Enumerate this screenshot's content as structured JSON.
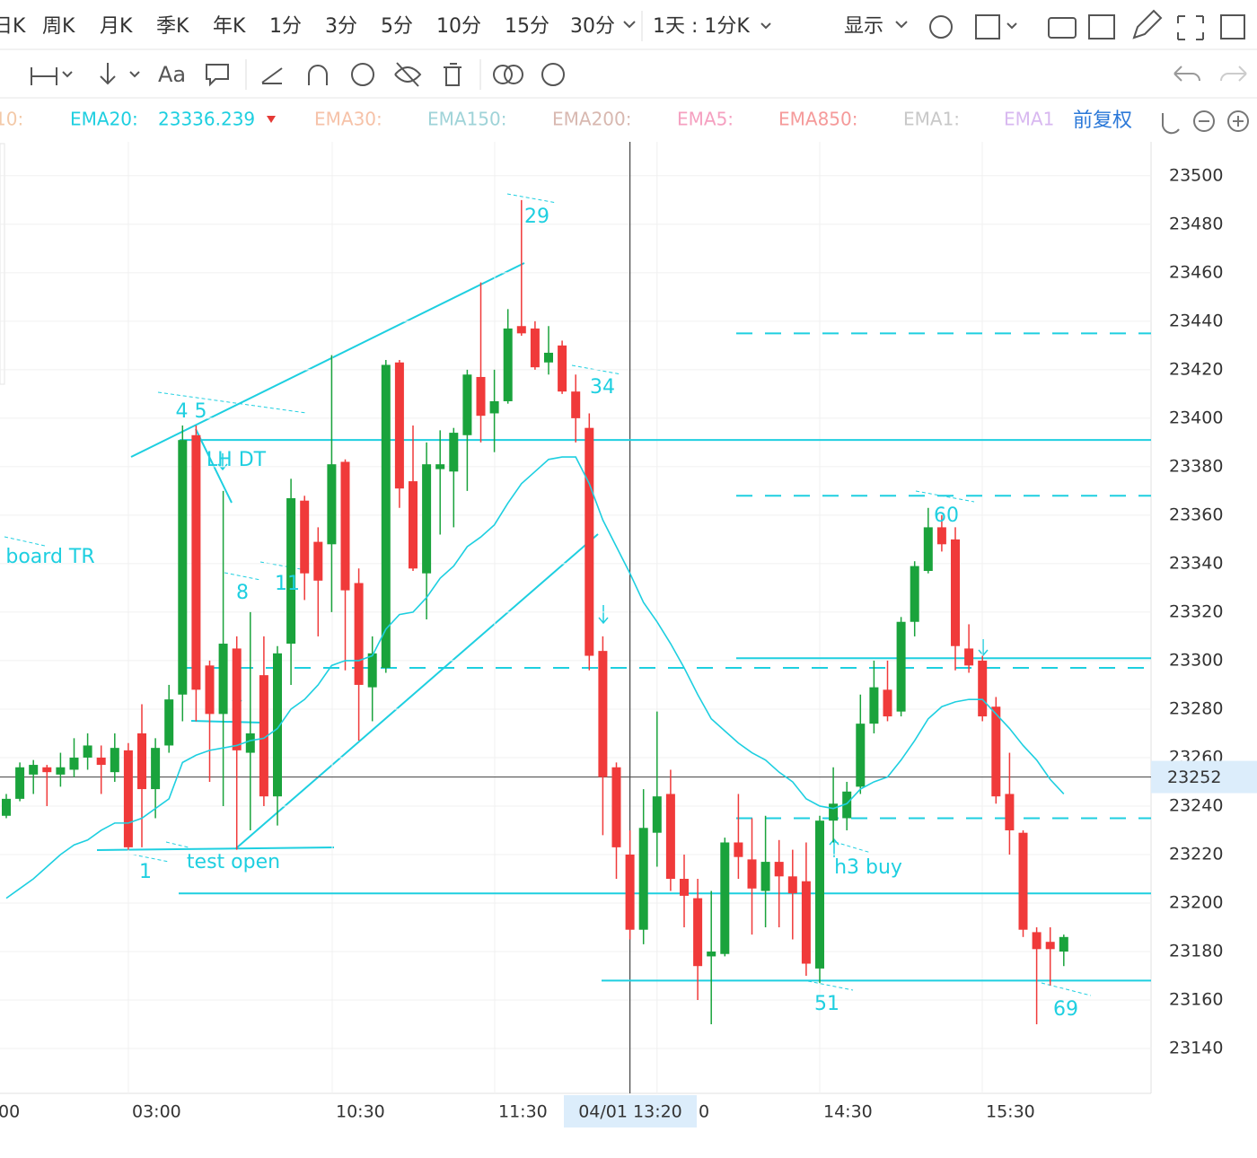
{
  "toolbar": {
    "periods": [
      "日K",
      "周K",
      "月K",
      "季K",
      "年K",
      "1分",
      "3分",
      "5分",
      "10分",
      "15分",
      "30分"
    ],
    "active_period": "5分",
    "combo": "1天 : 1分K",
    "display": "显示",
    "text_tool": "Aa"
  },
  "legend": {
    "items": [
      {
        "name": "10:",
        "color": "#f3c9a8"
      },
      {
        "name": "EMA20:",
        "color": "#1ecfe0",
        "value": "23336.239"
      },
      {
        "name": "EMA30:",
        "color": "#f6c2a8"
      },
      {
        "name": "EMA150:",
        "color": "#9fd3d8"
      },
      {
        "name": "EMA200:",
        "color": "#d8b8b0"
      },
      {
        "name": "EMA5:",
        "color": "#f5a0c0"
      },
      {
        "name": "EMA850:",
        "color": "#f59a9a"
      },
      {
        "name": "EMA1:",
        "color": "#c8c8c8"
      },
      {
        "name": "EMA1",
        "color": "#d8b8f0"
      }
    ],
    "adjust": "前复权"
  },
  "chart_data": {
    "type": "candlestick",
    "categories": [
      "00",
      null,
      null,
      null,
      null,
      null,
      null,
      null,
      null,
      "03:00",
      null,
      null,
      null,
      null,
      null,
      null,
      null,
      null,
      null,
      null,
      null,
      null,
      null,
      null,
      "10:30",
      null,
      null,
      null,
      null,
      null,
      null,
      null,
      null,
      null,
      null,
      null,
      "11:30",
      null,
      null,
      null,
      null,
      null,
      null,
      null,
      null,
      null,
      "04/01 13:20",
      null,
      "0",
      null,
      null,
      null,
      null,
      null,
      null,
      null,
      null,
      null,
      null,
      null,
      "14:30",
      null,
      null,
      null,
      null,
      null,
      null,
      null,
      null,
      null,
      null,
      null,
      "15:30",
      null,
      null,
      null,
      null,
      null,
      null
    ],
    "open": [
      23236,
      23243,
      23253,
      23256,
      23253,
      23255,
      23260,
      23260,
      23254,
      23263,
      23270,
      23247,
      23265,
      23286,
      23393,
      23298,
      23278,
      23305,
      23262,
      23294,
      23244,
      23307,
      23366,
      23349,
      23348,
      23382,
      23332,
      23289,
      23297,
      23423,
      23374,
      23336,
      23379,
      23378,
      23393,
      23417,
      23402,
      23407,
      23438,
      23437,
      23423,
      23430,
      23411,
      23396,
      23304,
      23256,
      23220,
      23189,
      23229,
      23245,
      23210,
      23202,
      23178,
      23179,
      23225,
      23218,
      23205,
      23217,
      23211,
      23209,
      23173,
      23234,
      23235,
      23248,
      23274,
      23288,
      23279,
      23316,
      23337,
      23355,
      23350,
      23305,
      23300,
      23281,
      23245,
      23229,
      23188,
      23184,
      23180
    ],
    "high": [
      23245,
      23258,
      23259,
      23257,
      23262,
      23268,
      23270,
      23265,
      23270,
      23266,
      23282,
      23268,
      23290,
      23397,
      23397,
      23300,
      23370,
      23310,
      23320,
      23310,
      23306,
      23375,
      23368,
      23355,
      23426,
      23383,
      23338,
      23310,
      23424,
      23424,
      23397,
      23390,
      23395,
      23396,
      23420,
      23456,
      23420,
      23445,
      23490,
      23440,
      23438,
      23432,
      23418,
      23402,
      23310,
      23258,
      23230,
      23247,
      23279,
      23255,
      23220,
      23210,
      23205,
      23227,
      23245,
      23235,
      23236,
      23226,
      23222,
      23225,
      23236,
      23256,
      23250,
      23286,
      23300,
      23300,
      23318,
      23341,
      23363,
      23360,
      23355,
      23315,
      23302,
      23285,
      23262,
      23230,
      23190,
      23190,
      23187
    ],
    "low": [
      23235,
      23242,
      23245,
      23240,
      23248,
      23252,
      23255,
      23245,
      23250,
      23222,
      23223,
      23235,
      23262,
      23275,
      23275,
      23250,
      23240,
      23222,
      23230,
      23240,
      23232,
      23290,
      23325,
      23310,
      23320,
      23296,
      23267,
      23275,
      23295,
      23363,
      23337,
      23317,
      23352,
      23355,
      23370,
      23390,
      23386,
      23406,
      23434,
      23420,
      23418,
      23410,
      23390,
      23296,
      23228,
      23210,
      23185,
      23183,
      23215,
      23205,
      23190,
      23160,
      23150,
      23178,
      23210,
      23187,
      23190,
      23190,
      23185,
      23170,
      23167,
      23225,
      23230,
      23245,
      23270,
      23275,
      23277,
      23310,
      23336,
      23345,
      23296,
      23295,
      23275,
      23241,
      23220,
      23186,
      23150,
      23166,
      23174
    ],
    "close": [
      23243,
      23256,
      23257,
      23254,
      23256,
      23260,
      23265,
      23257,
      23264,
      23223,
      23247,
      23264,
      23284,
      23391,
      23288,
      23278,
      23307,
      23263,
      23270,
      23244,
      23303,
      23367,
      23336,
      23333,
      23381,
      23329,
      23290,
      23303,
      23422,
      23371,
      23338,
      23381,
      23381,
      23394,
      23418,
      23401,
      23407,
      23437,
      23435,
      23421,
      23427,
      23411,
      23400,
      23302,
      23252,
      23223,
      23189,
      23231,
      23244,
      23210,
      23203,
      23174,
      23180,
      23225,
      23219,
      23206,
      23217,
      23211,
      23204,
      23175,
      23234,
      23241,
      23246,
      23274,
      23289,
      23277,
      23316,
      23339,
      23355,
      23348,
      23306,
      23298,
      23277,
      23244,
      23230,
      23189,
      23181,
      23181,
      23186
    ],
    "up_color": "#1aa33c",
    "down_color": "#f03a3a",
    "series": [
      {
        "name": "EMA20",
        "color": "#1ecfe0",
        "values": [
          23202,
          23206,
          23210,
          23215,
          23220,
          23224,
          23226,
          23230,
          23233,
          23233,
          23235,
          23239,
          23243,
          23258,
          23261,
          23263,
          23264,
          23265,
          23267,
          23268,
          23272,
          23280,
          23284,
          23290,
          23298,
          23300,
          23300,
          23302,
          23313,
          23319,
          23320,
          23326,
          23334,
          23339,
          23347,
          23351,
          23356,
          23365,
          23373,
          23378,
          23383,
          23384,
          23384,
          23373,
          23358,
          23347,
          23336,
          23324,
          23316,
          23307,
          23297,
          23286,
          23276,
          23271,
          23266,
          23262,
          23259,
          23254,
          23250,
          23243,
          23240,
          23239,
          23241,
          23247,
          23250,
          23252,
          23259,
          23267,
          23276,
          23281,
          23283,
          23284,
          23284,
          23278,
          23272,
          23265,
          23259,
          23251,
          23245
        ]
      }
    ],
    "hlines": [
      {
        "value": 23391,
        "style": "solid"
      },
      {
        "value": 23204,
        "style": "solid"
      },
      {
        "value": 23301,
        "style": "solid"
      },
      {
        "value": 23168,
        "style": "solid"
      },
      {
        "value": 23435,
        "style": "dashed"
      },
      {
        "value": 23368,
        "style": "dashed"
      },
      {
        "value": 23297,
        "style": "dashed"
      },
      {
        "value": 23235,
        "style": "dashed"
      }
    ],
    "line_color": "#1ecfe0",
    "last_price": 23252,
    "annotations": [
      "29",
      "34",
      "4 5",
      "LH DT",
      "board  TR",
      "8",
      "11",
      "1",
      "test open",
      "60",
      "h3 buy",
      "51",
      "69"
    ],
    "ylim": [
      23121.5,
      23514
    ],
    "yticks": [
      23140,
      23160,
      23180,
      23200,
      23220,
      23240,
      23260,
      23280,
      23300,
      23320,
      23340,
      23360,
      23380,
      23400,
      23420,
      23440,
      23460,
      23480,
      23500
    ],
    "grid": true
  }
}
